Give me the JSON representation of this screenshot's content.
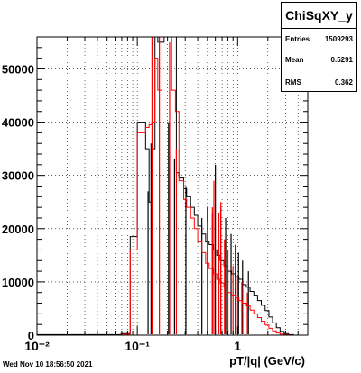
{
  "chart_data": {
    "type": "histogram-step",
    "xscale": "log",
    "xlim": [
      0.01,
      5
    ],
    "ylim": [
      0,
      56000
    ],
    "xlabel": "pT/|q| (GeV/c)",
    "ylabel": "",
    "grid": true,
    "x_ticks": [
      {
        "value": 0.01,
        "label": "10⁻²"
      },
      {
        "value": 0.1,
        "label": "10⁻¹"
      },
      {
        "value": 1,
        "label": "1"
      }
    ],
    "y_ticks": [
      {
        "value": 0,
        "label": "0"
      },
      {
        "value": 10000,
        "label": "10000"
      },
      {
        "value": 20000,
        "label": "20000"
      },
      {
        "value": 30000,
        "label": "30000"
      },
      {
        "value": 40000,
        "label": "40000"
      },
      {
        "value": 50000,
        "label": "50000"
      }
    ],
    "series": [
      {
        "color": "#000000",
        "steps": [
          [
            0.01,
            100
          ],
          [
            0.069,
            300
          ],
          [
            0.085,
            18500
          ],
          [
            0.1,
            40000
          ],
          [
            0.121,
            35000
          ],
          [
            0.131,
            25000
          ],
          [
            0.139,
            35000
          ],
          [
            0.15,
            59000
          ],
          [
            0.16,
            55000
          ],
          [
            0.185,
            59000
          ],
          [
            0.2,
            56000
          ],
          [
            0.22,
            58000
          ],
          [
            0.245,
            30500
          ],
          [
            0.26,
            29500
          ],
          [
            0.29,
            27500
          ],
          [
            0.31,
            26000
          ],
          [
            0.34,
            24000
          ],
          [
            0.37,
            22500
          ],
          [
            0.4,
            20500
          ],
          [
            0.44,
            19000
          ],
          [
            0.48,
            17500
          ],
          [
            0.52,
            17000
          ],
          [
            0.57,
            16000
          ],
          [
            0.62,
            15000
          ],
          [
            0.67,
            14000
          ],
          [
            0.73,
            13000
          ],
          [
            0.8,
            12000
          ],
          [
            0.87,
            11500
          ],
          [
            0.95,
            11000
          ],
          [
            1.03,
            10500
          ],
          [
            1.12,
            9500
          ],
          [
            1.22,
            9000
          ],
          [
            1.33,
            8200
          ],
          [
            1.45,
            7500
          ],
          [
            1.58,
            6500
          ],
          [
            1.72,
            5600
          ],
          [
            1.88,
            4600
          ],
          [
            2.05,
            3400
          ],
          [
            2.23,
            2300
          ],
          [
            2.43,
            1400
          ],
          [
            2.65,
            700
          ],
          [
            2.9,
            300
          ],
          [
            3.2,
            100
          ],
          [
            3.6,
            0
          ]
        ],
        "spikes": [
          [
            0.128,
            27000
          ],
          [
            0.137,
            36000
          ],
          [
            0.205,
            40000
          ],
          [
            0.235,
            33000
          ],
          [
            0.305,
            28000
          ],
          [
            0.44,
            22000
          ],
          [
            0.5,
            24000
          ],
          [
            0.56,
            23000
          ],
          [
            0.6,
            32000
          ],
          [
            0.68,
            24000
          ],
          [
            0.76,
            22000
          ],
          [
            0.86,
            19000
          ],
          [
            0.95,
            17000
          ],
          [
            1.02,
            15500
          ],
          [
            1.12,
            14000
          ],
          [
            1.28,
            12000
          ]
        ]
      },
      {
        "color": "#ff0000",
        "steps": [
          [
            0.01,
            0
          ],
          [
            0.069,
            200
          ],
          [
            0.085,
            16000
          ],
          [
            0.1,
            38000
          ],
          [
            0.121,
            39000
          ],
          [
            0.131,
            39500
          ],
          [
            0.139,
            40000
          ],
          [
            0.15,
            52000
          ],
          [
            0.16,
            46000
          ],
          [
            0.176,
            59000
          ],
          [
            0.2,
            59000
          ],
          [
            0.22,
            46000
          ],
          [
            0.24,
            42000
          ],
          [
            0.26,
            29000
          ],
          [
            0.29,
            25500
          ],
          [
            0.31,
            24000
          ],
          [
            0.34,
            22000
          ],
          [
            0.37,
            20000
          ],
          [
            0.4,
            17500
          ],
          [
            0.44,
            15500
          ],
          [
            0.48,
            13500
          ],
          [
            0.52,
            12500
          ],
          [
            0.57,
            11500
          ],
          [
            0.62,
            10500
          ],
          [
            0.67,
            9800
          ],
          [
            0.73,
            9000
          ],
          [
            0.8,
            8000
          ],
          [
            0.87,
            7500
          ],
          [
            0.95,
            7000
          ],
          [
            1.03,
            6500
          ],
          [
            1.12,
            6000
          ],
          [
            1.22,
            5500
          ],
          [
            1.33,
            4700
          ],
          [
            1.45,
            4000
          ],
          [
            1.58,
            3300
          ],
          [
            1.72,
            2600
          ],
          [
            1.88,
            1900
          ],
          [
            2.05,
            1300
          ],
          [
            2.23,
            800
          ],
          [
            2.43,
            400
          ],
          [
            2.65,
            200
          ],
          [
            2.9,
            80
          ],
          [
            3.2,
            30
          ],
          [
            3.6,
            0
          ]
        ],
        "spikes": [
          [
            0.14,
            59000
          ],
          [
            0.166,
            59000
          ],
          [
            0.21,
            55000
          ],
          [
            0.245,
            35000
          ],
          [
            0.5,
            21000
          ],
          [
            0.56,
            24000
          ],
          [
            0.58,
            29000
          ],
          [
            0.65,
            23000
          ],
          [
            0.68,
            25000
          ],
          [
            0.74,
            18000
          ],
          [
            0.8,
            16000
          ],
          [
            0.9,
            13000
          ],
          [
            1.0,
            11000
          ],
          [
            1.1,
            10000
          ],
          [
            1.25,
            8000
          ]
        ]
      }
    ]
  },
  "stats_box": {
    "title": "ChiSqXY_y",
    "rows": [
      {
        "label": "Entries",
        "value": "1509293"
      },
      {
        "label": "Mean",
        "value": "0.5291"
      },
      {
        "label": "RMS",
        "value": "0.362"
      }
    ]
  },
  "timestamp": "Wed Nov 10 18:56:50 2021"
}
